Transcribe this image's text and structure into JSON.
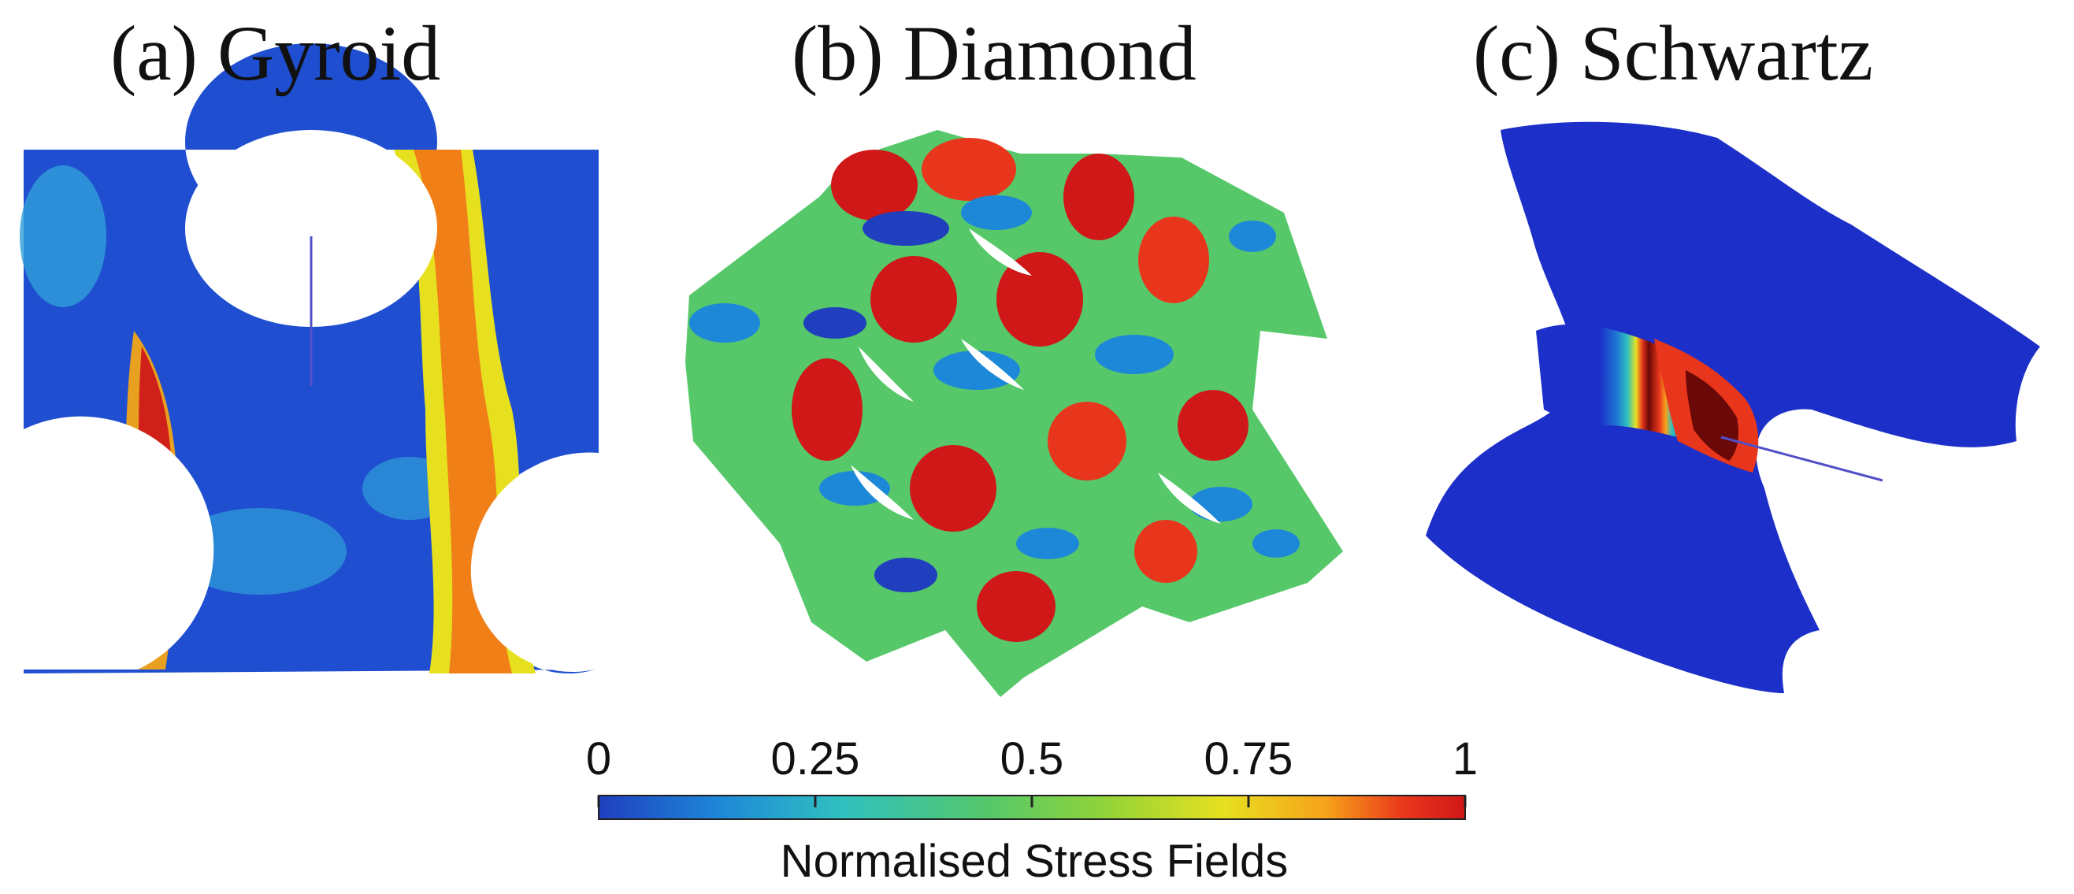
{
  "panels": [
    {
      "id": "a",
      "title": "(a) Gyroid"
    },
    {
      "id": "b",
      "title": "(b) Diamond"
    },
    {
      "id": "c",
      "title": "(c) Schwartz"
    }
  ],
  "colorbar": {
    "label": "Normalised Stress Fields",
    "ticks": [
      "0",
      "0.25",
      "0.5",
      "0.75",
      "1"
    ],
    "range": [
      0,
      1
    ],
    "colors": [
      "#1f3fbf",
      "#1e88d8",
      "#2fc0c0",
      "#56c86a",
      "#8fd33a",
      "#e6e01f",
      "#f7a21b",
      "#e8361c",
      "#d01818"
    ]
  }
}
